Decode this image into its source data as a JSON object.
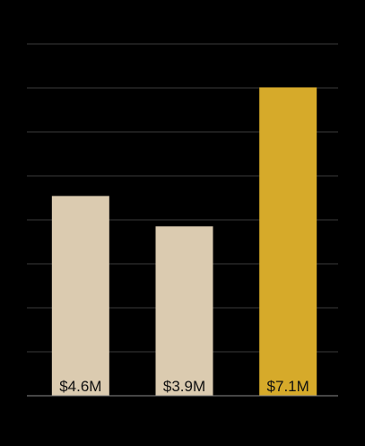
{
  "chart_data": {
    "type": "bar",
    "categories": [
      "",
      "",
      ""
    ],
    "values": [
      4.6,
      3.9,
      7.1
    ],
    "value_labels": [
      "$4.6M",
      "$3.9M",
      "$7.1M"
    ],
    "title": "",
    "xlabel": "",
    "ylabel": "",
    "ylim": [
      0,
      8.1
    ],
    "grid": true,
    "legend": "none",
    "colors": {
      "background": "#000000",
      "bar_default": "#dbcbb0",
      "bar_highlight": "#d6aa2a",
      "gridline": "#3a3a3a",
      "baseline": "#8a8a8a",
      "label": "#111111"
    },
    "highlight_index": 2
  }
}
